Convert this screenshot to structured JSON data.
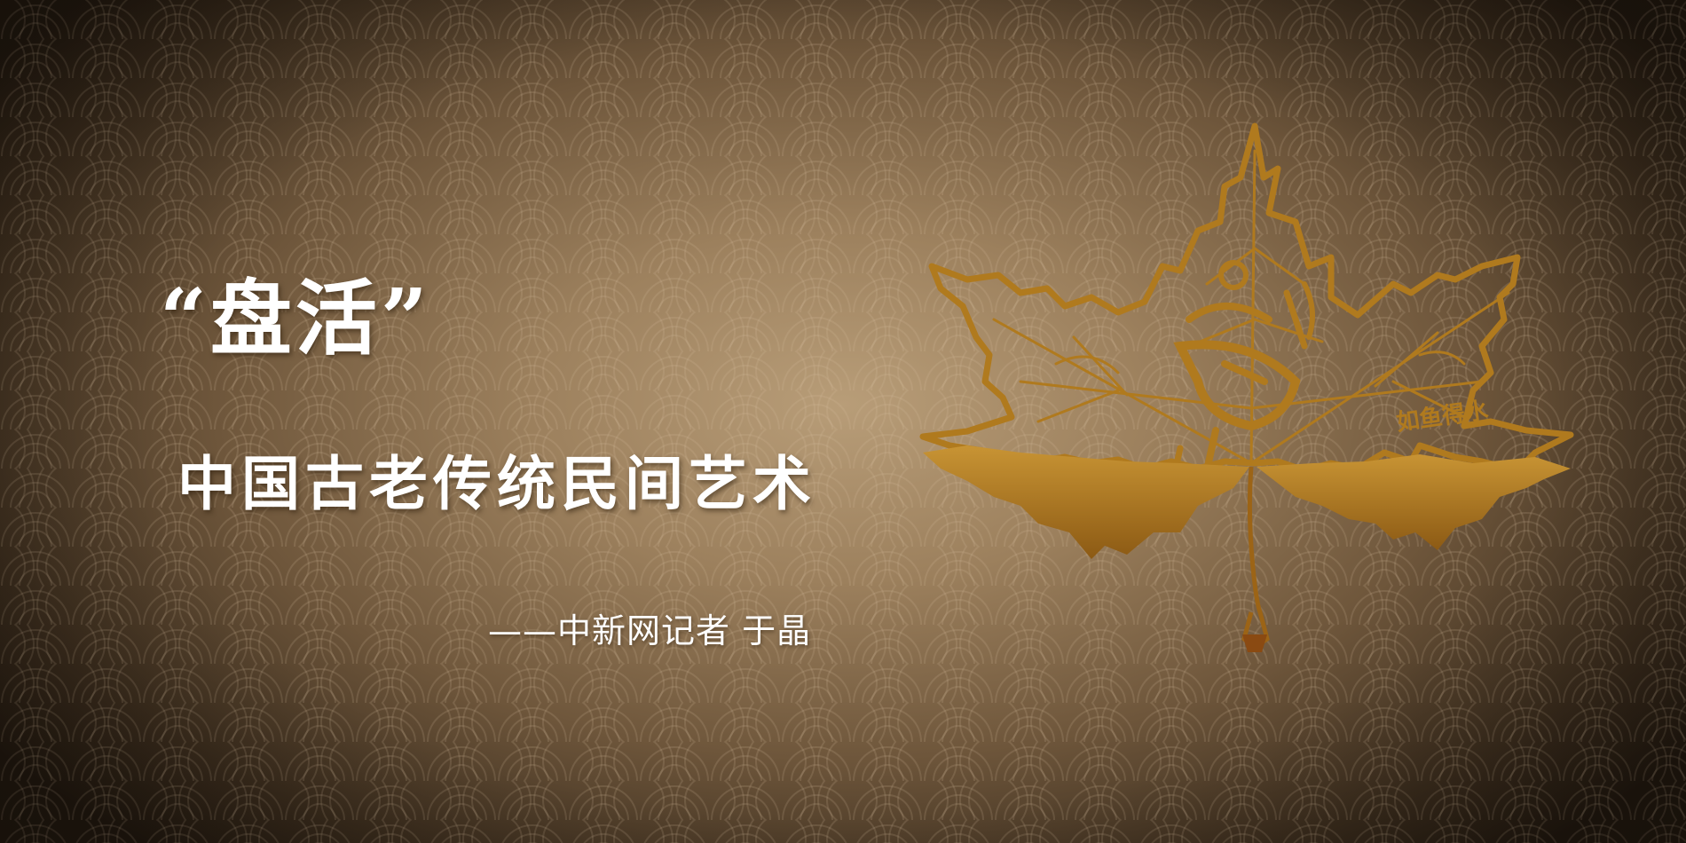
{
  "slide": {
    "title": "“盘活”",
    "subtitle": "中国古老传统民间艺术",
    "byline": "——中新网记者 于晶"
  },
  "artwork": {
    "icon": "carved-maple-leaf-icon",
    "carved_text": "如鱼得水",
    "leaf_color": "#b07a1e"
  },
  "colors": {
    "background_center": "#b89d78",
    "background_edge": "#1e160e",
    "text": "#ffffff"
  }
}
